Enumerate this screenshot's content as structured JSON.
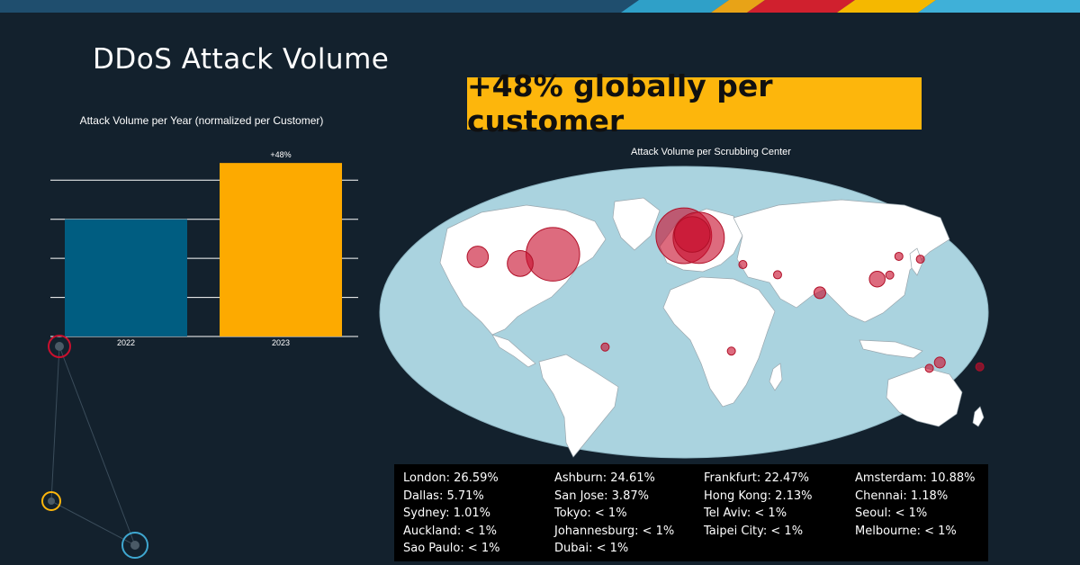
{
  "slide": {
    "title": "DDoS Attack Volume",
    "headline": "+48% globally per customer"
  },
  "colors": {
    "background": "#13212d",
    "bar_2022": "#005d81",
    "bar_2023": "#fdaa00",
    "headline_bg": "#fdb60c",
    "bubble": "#c8102e",
    "ocean": "#aad3df",
    "land": "#ffffff"
  },
  "chart_data": [
    {
      "type": "bar",
      "title": "Attack Volume per Year (normalized per Customer)",
      "categories": [
        "2022",
        "2023"
      ],
      "values": [
        1.0,
        1.48
      ],
      "data_labels": [
        "",
        "+48%"
      ],
      "ylim": [
        0,
        1.65
      ],
      "grid": true,
      "xlabel": "",
      "ylabel": ""
    },
    {
      "type": "scatter",
      "title": "Attack Volume per Scrubbing Center",
      "points": [
        {
          "city": "London",
          "lon": -0.1,
          "lat": 51.5,
          "value": 26.59,
          "label": "26.59%"
        },
        {
          "city": "Ashburn",
          "lon": -77.5,
          "lat": 39.0,
          "value": 24.61,
          "label": "24.61%"
        },
        {
          "city": "Frankfurt",
          "lon": 8.7,
          "lat": 50.1,
          "value": 22.47,
          "label": "22.47%"
        },
        {
          "city": "Amsterdam",
          "lon": 4.9,
          "lat": 52.4,
          "value": 10.88,
          "label": "10.88%"
        },
        {
          "city": "Dallas",
          "lon": -96.8,
          "lat": 32.8,
          "value": 5.71,
          "label": "5.71%"
        },
        {
          "city": "San Jose",
          "lon": -121.9,
          "lat": 37.3,
          "value": 3.87,
          "label": "3.87%"
        },
        {
          "city": "Hong Kong",
          "lon": 114.2,
          "lat": 22.3,
          "value": 2.13,
          "label": "2.13%"
        },
        {
          "city": "Chennai",
          "lon": 80.3,
          "lat": 13.1,
          "value": 1.18,
          "label": "1.18%"
        },
        {
          "city": "Sydney",
          "lon": 151.2,
          "lat": -33.9,
          "value": 1.01,
          "label": "1.01%"
        },
        {
          "city": "Tokyo",
          "lon": 139.7,
          "lat": 35.7,
          "value": 0.5,
          "label": "< 1%"
        },
        {
          "city": "Tel Aviv",
          "lon": 34.8,
          "lat": 32.1,
          "value": 0.5,
          "label": "< 1%"
        },
        {
          "city": "Seoul",
          "lon": 127.0,
          "lat": 37.6,
          "value": 0.5,
          "label": "< 1%"
        },
        {
          "city": "Auckland",
          "lon": 174.8,
          "lat": -36.8,
          "value": 0.5,
          "label": "< 1%"
        },
        {
          "city": "Johannesburg",
          "lon": 28.0,
          "lat": -26.2,
          "value": 0.5,
          "label": "< 1%"
        },
        {
          "city": "Taipei City",
          "lon": 121.6,
          "lat": 25.0,
          "value": 0.5,
          "label": "< 1%"
        },
        {
          "city": "Melbourne",
          "lon": 145.0,
          "lat": -37.8,
          "value": 0.5,
          "label": "< 1%"
        },
        {
          "city": "Sao Paulo",
          "lon": -46.6,
          "lat": -23.5,
          "value": 0.5,
          "label": "< 1%"
        },
        {
          "city": "Dubai",
          "lon": 55.3,
          "lat": 25.2,
          "value": 0.5,
          "label": "< 1%"
        }
      ]
    }
  ],
  "legend_rows": [
    [
      "London: 26.59%",
      "Ashburn: 24.61%",
      "Frankfurt: 22.47%",
      "Amsterdam: 10.88%"
    ],
    [
      "Dallas: 5.71%",
      "San Jose: 3.87%",
      "Hong Kong: 2.13%",
      "Chennai: 1.18%"
    ],
    [
      "Sydney: 1.01%",
      "Tokyo: < 1%",
      "Tel Aviv: < 1%",
      "Seoul: < 1%"
    ],
    [
      "Auckland: < 1%",
      "Johannesburg: < 1%",
      "Taipei City: < 1%",
      "Melbourne: < 1%"
    ],
    [
      "Sao Paulo: < 1%",
      "Dubai: < 1%",
      "",
      ""
    ]
  ]
}
